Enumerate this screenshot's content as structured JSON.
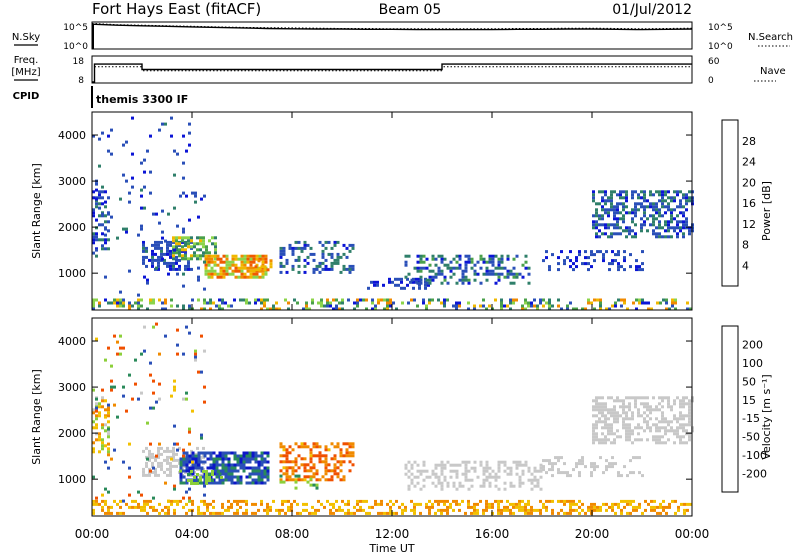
{
  "header": {
    "station": "Fort Hays East (fitACF)",
    "beam": "Beam 05",
    "date": "01/Jul/2012"
  },
  "chart_data": [
    {
      "type": "line",
      "panel": "noise",
      "left_label": "N.Sky",
      "right_label": "N.Search",
      "left_ticks": [
        "10^5",
        "10^0"
      ],
      "right_ticks": [
        "10^5",
        "10^0"
      ],
      "series": [
        {
          "name": "N.Sky",
          "style": "solid",
          "level": [
            0.92,
            0.88,
            0.86,
            0.84,
            0.82,
            0.8,
            0.78,
            0.76,
            0.75,
            0.74,
            0.74,
            0.73,
            0.73,
            0.72,
            0.72,
            0.72,
            0.72,
            0.73,
            0.73,
            0.74,
            0.74,
            0.73,
            0.72,
            0.73,
            0.74
          ]
        },
        {
          "name": "N.Search",
          "style": "dotted",
          "level": [
            0.95,
            0.9,
            0.88,
            0.86,
            0.84,
            0.82,
            0.8,
            0.79,
            0.78,
            0.77,
            0.76,
            0.76,
            0.75,
            0.75,
            0.75,
            0.75,
            0.75,
            0.76,
            0.76,
            0.77,
            0.77,
            0.76,
            0.75,
            0.76,
            0.77
          ]
        }
      ]
    },
    {
      "type": "line",
      "panel": "freq_nave",
      "left_label_lines": [
        "Freq.",
        "[MHz]"
      ],
      "right_label": "Nave",
      "left_ticks": [
        18,
        8
      ],
      "right_ticks": [
        60,
        0
      ],
      "left_range": [
        8,
        18
      ],
      "freq_steps": [
        {
          "t0": 0.0,
          "t1": 0.1,
          "value": 4
        },
        {
          "t0": 0.1,
          "t1": 2.0,
          "value": 15
        },
        {
          "t0": 2.0,
          "t1": 14.0,
          "value": 13
        },
        {
          "t0": 14.0,
          "t1": 24.0,
          "value": 15
        }
      ],
      "nave_steps": [
        {
          "t0": 0.1,
          "t1": 2.0,
          "value": 14
        },
        {
          "t0": 2.0,
          "t1": 14.0,
          "value": 12.5
        },
        {
          "t0": 14.0,
          "t1": 24.0,
          "value": 14
        }
      ]
    },
    {
      "type": "table",
      "panel": "cpid",
      "label": "CPID",
      "value": "themis 3300 IF"
    },
    {
      "type": "heatmap",
      "panel": "power",
      "ylabel": "Slant Range [km]",
      "yticks": [
        1000,
        2000,
        3000,
        4000
      ],
      "ylim": [
        200,
        4500
      ],
      "xlim": [
        0,
        24
      ],
      "colorbar_label": "Power [dB]",
      "colorbar_ticks": [
        "4",
        "8",
        "12",
        "16",
        "20",
        "24",
        "28"
      ],
      "colors": [
        "#0b14d6",
        "#2a4fb8",
        "#2f7f6a",
        "#4aa04a",
        "#8cd44a",
        "#f0b800",
        "#f08a00",
        "#f05a00",
        "#e81e10"
      ],
      "blobs": [
        {
          "t": [
            2.0,
            4.0
          ],
          "r": [
            1100,
            1700
          ],
          "v": [
            4,
            10
          ],
          "d": 0.55
        },
        {
          "t": [
            3.2,
            5.0
          ],
          "r": [
            1300,
            1800
          ],
          "v": [
            10,
            22
          ],
          "d": 0.6
        },
        {
          "t": [
            4.5,
            7.0
          ],
          "r": [
            900,
            1400
          ],
          "v": [
            16,
            30
          ],
          "d": 0.75
        },
        {
          "t": [
            6.5,
            7.2
          ],
          "r": [
            1050,
            1300
          ],
          "v": [
            18,
            28
          ],
          "d": 0.6
        },
        {
          "t": [
            7.5,
            10.5
          ],
          "r": [
            1000,
            1700
          ],
          "v": [
            4,
            12
          ],
          "d": 0.35
        },
        {
          "t": [
            11.0,
            13.5
          ],
          "r": [
            700,
            900
          ],
          "v": [
            4,
            8
          ],
          "d": 0.35
        },
        {
          "t": [
            12.5,
            17.5
          ],
          "r": [
            800,
            1400
          ],
          "v": [
            4,
            14
          ],
          "d": 0.4
        },
        {
          "t": [
            0.0,
            24.0
          ],
          "r": [
            250,
            450
          ],
          "v": [
            4,
            26
          ],
          "d": 0.35
        },
        {
          "t": [
            18.0,
            22.0
          ],
          "r": [
            1100,
            1500
          ],
          "v": [
            4,
            8
          ],
          "d": 0.3
        },
        {
          "t": [
            20.0,
            24.0
          ],
          "r": [
            1800,
            2800
          ],
          "v": [
            4,
            12
          ],
          "d": 0.5
        },
        {
          "t": [
            0.0,
            0.7
          ],
          "r": [
            1500,
            2800
          ],
          "v": [
            4,
            10
          ],
          "d": 0.4
        },
        {
          "t": [
            0.0,
            4.5
          ],
          "r": [
            500,
            4400
          ],
          "v": [
            4,
            10
          ],
          "d": 0.05
        }
      ]
    },
    {
      "type": "heatmap",
      "panel": "velocity",
      "ylabel": "Slant Range [km]",
      "yticks": [
        1000,
        2000,
        3000,
        4000
      ],
      "ylim": [
        200,
        4500
      ],
      "xlim": [
        0,
        24
      ],
      "xticks": [
        "00:00",
        "04:00",
        "08:00",
        "12:00",
        "16:00",
        "20:00",
        "00:00"
      ],
      "xlabel": "Time UT",
      "colorbar_label": "Velocity [m s⁻¹]",
      "colorbar_ticks": [
        "200",
        "100",
        "50",
        "15",
        "-15",
        "-50",
        "-100",
        "-200"
      ],
      "colors": [
        "#0c16c8",
        "#2a4fb8",
        "#2a8a5a",
        "#8ccf3a",
        "#c8c8c8",
        "#f2c000",
        "#f08a00",
        "#f05000",
        "#e81e10"
      ],
      "blobs": [
        {
          "t": [
            2.0,
            4.5
          ],
          "r": [
            1100,
            1700
          ],
          "v": [
            -10,
            10
          ],
          "d": 0.5
        },
        {
          "t": [
            3.5,
            7.0
          ],
          "r": [
            900,
            1600
          ],
          "v": [
            60,
            250
          ],
          "d": 0.7
        },
        {
          "t": [
            3.8,
            5.2
          ],
          "r": [
            900,
            1200
          ],
          "v": [
            20,
            60
          ],
          "d": 0.4
        },
        {
          "t": [
            7.5,
            10.5
          ],
          "r": [
            1000,
            1800
          ],
          "v": [
            -150,
            -40
          ],
          "d": 0.45
        },
        {
          "t": [
            7.5,
            9.0
          ],
          "r": [
            800,
            1100
          ],
          "v": [
            15,
            60
          ],
          "d": 0.3
        },
        {
          "t": [
            0.0,
            24.0
          ],
          "r": [
            250,
            550
          ],
          "v": [
            -80,
            -20
          ],
          "d": 0.45
        },
        {
          "t": [
            12.5,
            18.0
          ],
          "r": [
            800,
            1400
          ],
          "v": [
            -10,
            10
          ],
          "d": 0.4
        },
        {
          "t": [
            18.0,
            22.0
          ],
          "r": [
            1100,
            1500
          ],
          "v": [
            -10,
            10
          ],
          "d": 0.3
        },
        {
          "t": [
            20.0,
            24.0
          ],
          "r": [
            1800,
            2800
          ],
          "v": [
            -12,
            12
          ],
          "d": 0.5
        },
        {
          "t": [
            0.0,
            0.7
          ],
          "r": [
            1500,
            2800
          ],
          "v": [
            -100,
            50
          ],
          "d": 0.35
        },
        {
          "t": [
            0.0,
            4.5
          ],
          "r": [
            500,
            4400
          ],
          "v": [
            -200,
            200
          ],
          "d": 0.05
        }
      ]
    }
  ]
}
